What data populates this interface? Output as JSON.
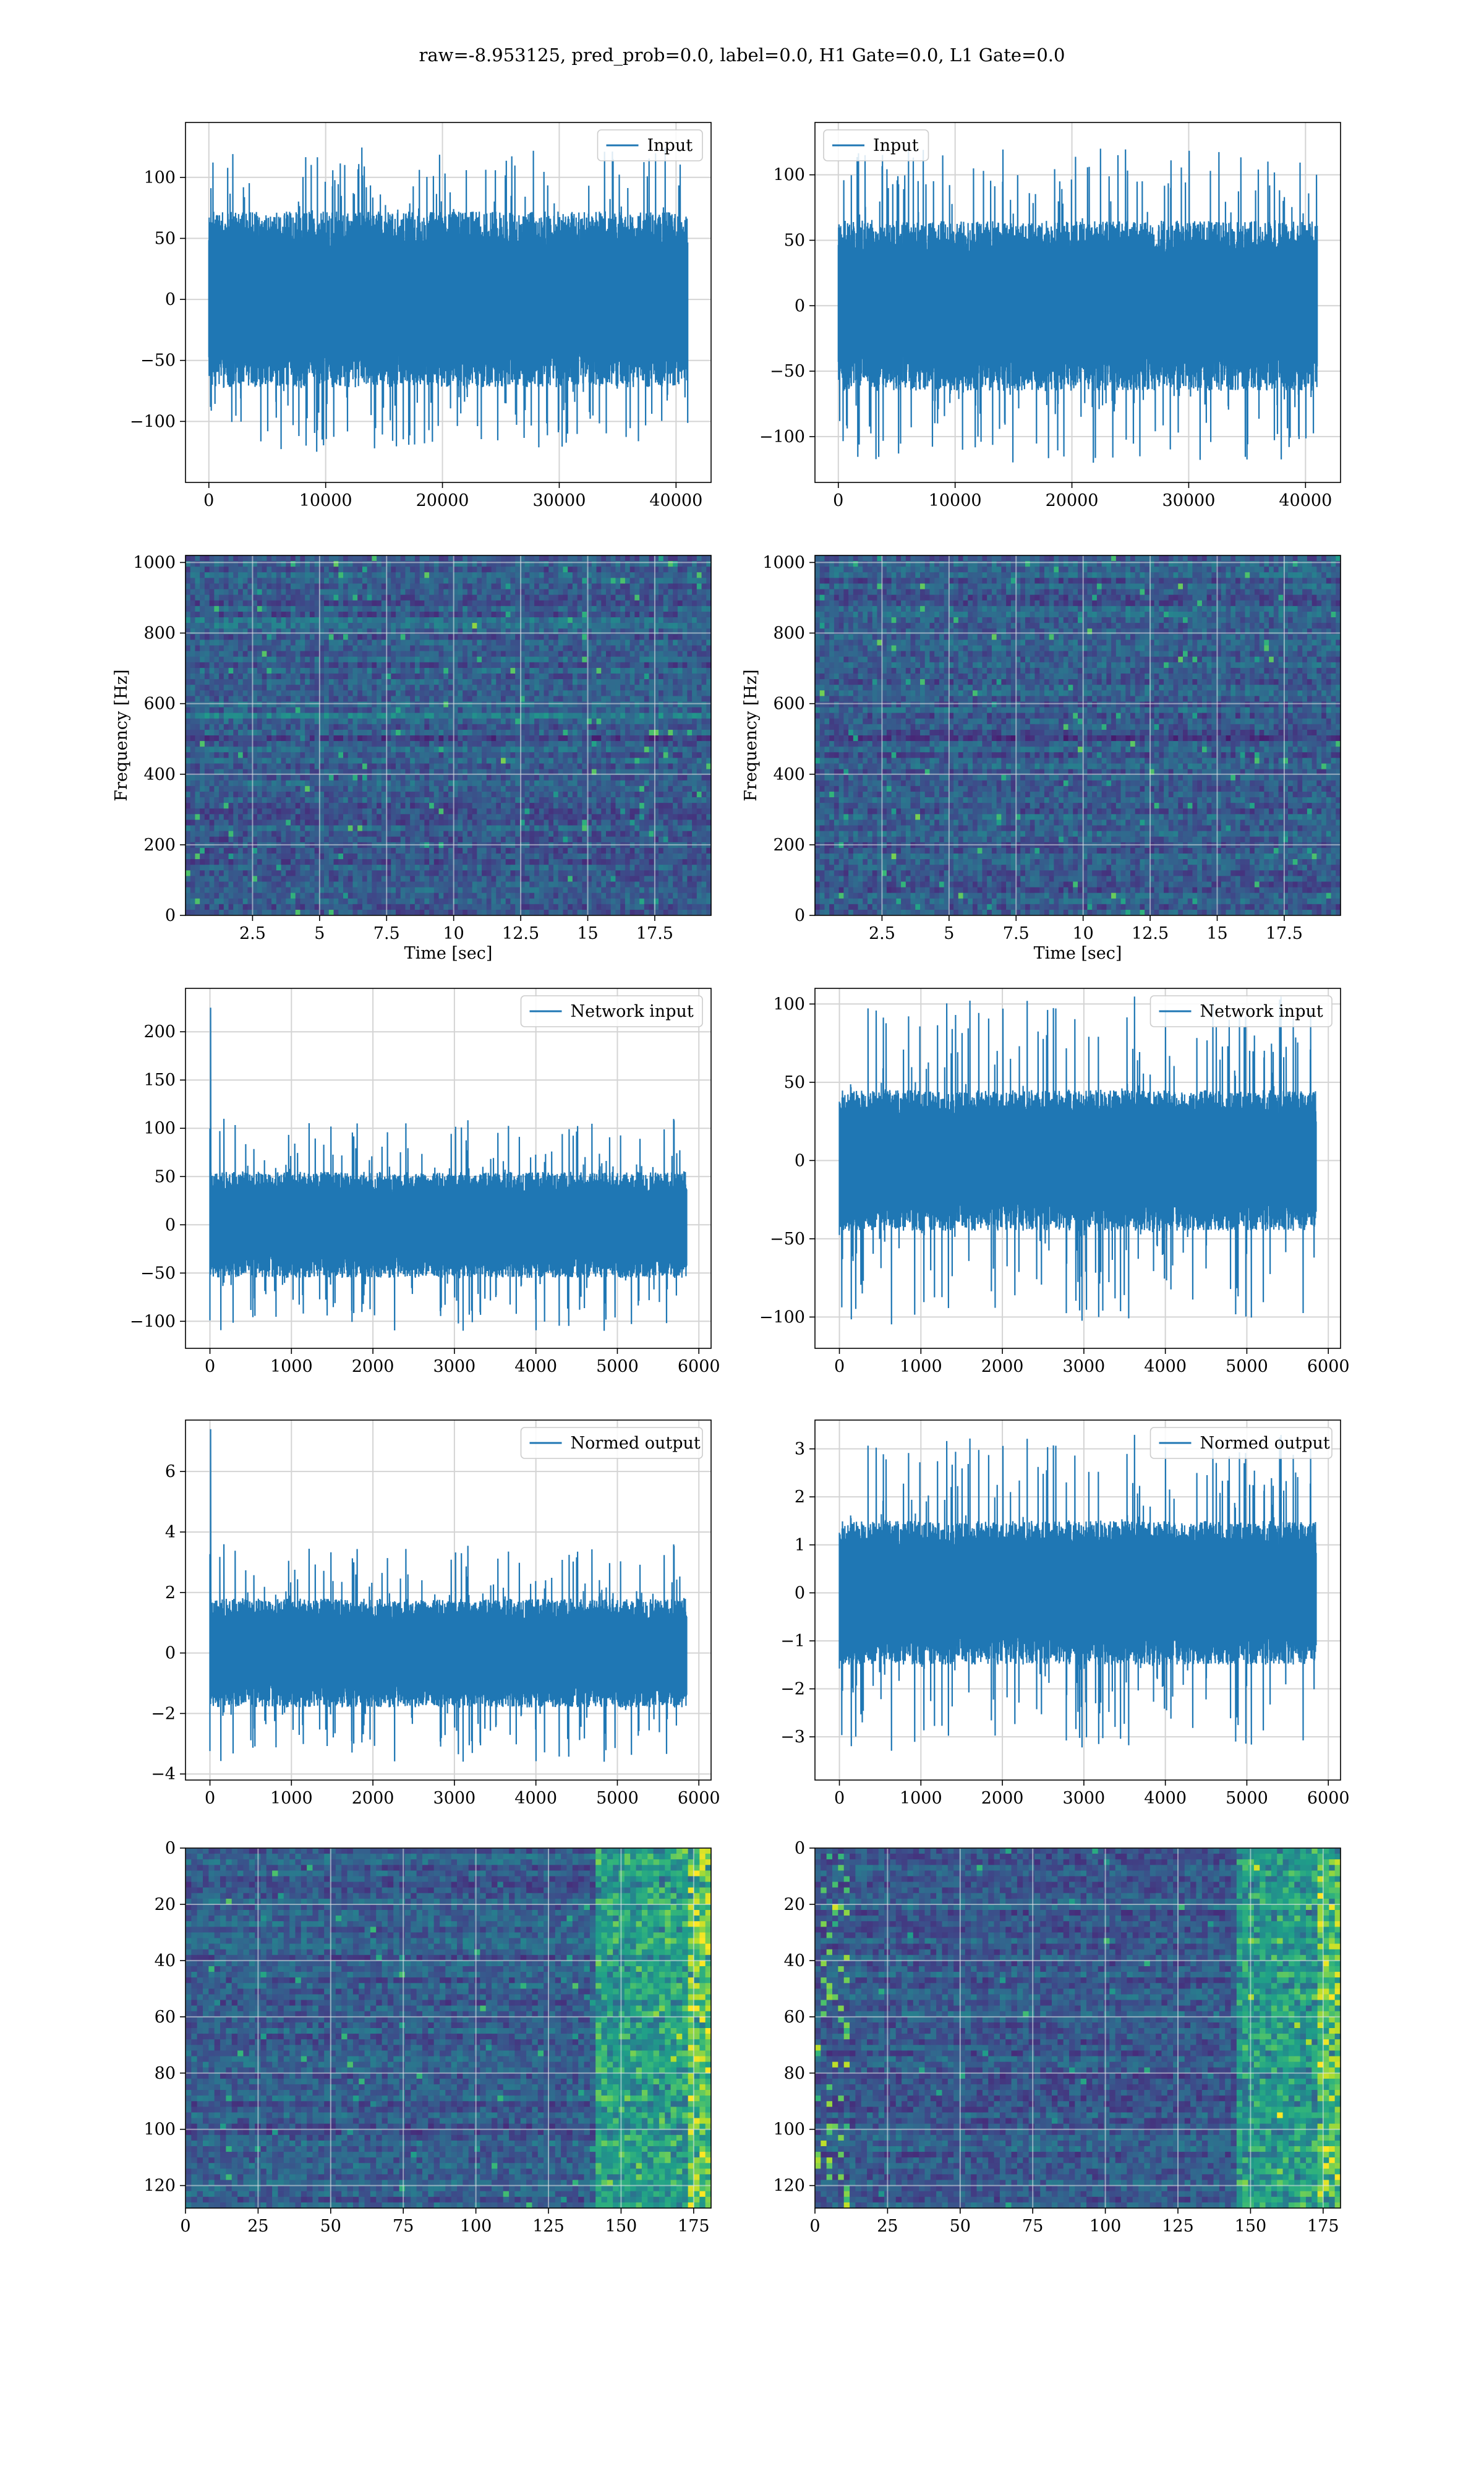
{
  "suptitle": "raw=-8.953125, pred_prob=0.0, label=0.0, H1 Gate=0.0, L1 Gate=0.0",
  "colors": {
    "line": "#1f77b4",
    "grid": "#d4d4d4",
    "axes": "#000000",
    "viridis": [
      "#440154",
      "#482878",
      "#3e4989",
      "#31688e",
      "#26828e",
      "#1f9e89",
      "#35b779",
      "#6ece58",
      "#b5de2b",
      "#fde725"
    ]
  },
  "chart_data": [
    {
      "id": "input-h1",
      "type": "line",
      "row": 0,
      "col": 0,
      "legend": "Input",
      "legend_position": "upper right",
      "xlim": [
        -2000,
        43000
      ],
      "ylim": [
        -150,
        145
      ],
      "xticks": [
        0,
        10000,
        20000,
        30000,
        40000
      ],
      "yticks": [
        -100,
        -50,
        0,
        50,
        100
      ],
      "grid": true,
      "series": [
        {
          "n": 41000,
          "x_start": 0,
          "x_end": 41000,
          "core": 72,
          "spike": 125,
          "seed": 11
        }
      ]
    },
    {
      "id": "input-l1",
      "type": "line",
      "row": 0,
      "col": 1,
      "legend": "Input",
      "legend_position": "upper left",
      "xlim": [
        -2000,
        43000
      ],
      "ylim": [
        -135,
        140
      ],
      "xticks": [
        0,
        10000,
        20000,
        30000,
        40000
      ],
      "yticks": [
        -100,
        -50,
        0,
        50,
        100
      ],
      "grid": true,
      "series": [
        {
          "n": 41000,
          "x_start": 0,
          "x_end": 41000,
          "core": 65,
          "spike": 120,
          "seed": 23
        }
      ]
    },
    {
      "id": "spectrogram-h1",
      "type": "heatmap",
      "row": 1,
      "col": 0,
      "xlabel": "Time [sec]",
      "ylabel": "Frequency [Hz]",
      "xlim": [
        0,
        19.6
      ],
      "ylim": [
        0,
        1020
      ],
      "xticks": [
        2.5,
        5.0,
        7.5,
        10.0,
        12.5,
        15.0,
        17.5
      ],
      "yticks": [
        0,
        200,
        400,
        600,
        800,
        1000
      ],
      "grid": true,
      "colormap": "viridis",
      "bands_hz": [
        830,
        560,
        505
      ],
      "seed": 5
    },
    {
      "id": "spectrogram-l1",
      "type": "heatmap",
      "row": 1,
      "col": 1,
      "xlabel": "Time [sec]",
      "ylabel": "Frequency [Hz]",
      "xlim": [
        0,
        19.6
      ],
      "ylim": [
        0,
        1020
      ],
      "xticks": [
        2.5,
        5.0,
        7.5,
        10.0,
        12.5,
        15.0,
        17.5
      ],
      "yticks": [
        0,
        200,
        400,
        600,
        800,
        1000
      ],
      "grid": true,
      "colormap": "viridis",
      "bands_hz": [
        500
      ],
      "seed": 7
    },
    {
      "id": "network-input-h1",
      "type": "line",
      "row": 2,
      "col": 0,
      "legend": "Network input",
      "legend_position": "upper right",
      "xlim": [
        -300,
        6150
      ],
      "ylim": [
        -128,
        245
      ],
      "xticks": [
        0,
        1000,
        2000,
        3000,
        4000,
        5000,
        6000
      ],
      "yticks": [
        -100,
        -50,
        0,
        50,
        100,
        150,
        200
      ],
      "grid": true,
      "series": [
        {
          "n": 5850,
          "x_start": 0,
          "x_end": 5850,
          "core": 55,
          "spike": 110,
          "seed": 31,
          "first_spike": 225
        }
      ]
    },
    {
      "id": "network-input-l1",
      "type": "line",
      "row": 2,
      "col": 1,
      "legend": "Network input",
      "legend_position": "upper right",
      "xlim": [
        -300,
        6150
      ],
      "ylim": [
        -120,
        110
      ],
      "xticks": [
        0,
        1000,
        2000,
        3000,
        4000,
        5000,
        6000
      ],
      "yticks": [
        -100,
        -50,
        0,
        50,
        100
      ],
      "grid": true,
      "series": [
        {
          "n": 5850,
          "x_start": 0,
          "x_end": 5850,
          "core": 45,
          "spike": 105,
          "seed": 37
        }
      ]
    },
    {
      "id": "normed-output-h1",
      "type": "line",
      "row": 3,
      "col": 0,
      "legend": "Normed output",
      "legend_position": "upper right",
      "xlim": [
        -300,
        6150
      ],
      "ylim": [
        -4.2,
        7.7
      ],
      "xticks": [
        0,
        1000,
        2000,
        3000,
        4000,
        5000,
        6000
      ],
      "yticks": [
        -4,
        -2,
        0,
        2,
        4,
        6
      ],
      "grid": true,
      "series": [
        {
          "n": 5850,
          "x_start": 0,
          "x_end": 5850,
          "core": 1.8,
          "spike": 3.6,
          "seed": 31,
          "first_spike": 7.4
        }
      ]
    },
    {
      "id": "normed-output-l1",
      "type": "line",
      "row": 3,
      "col": 1,
      "legend": "Normed output",
      "legend_position": "upper right",
      "xlim": [
        -300,
        6150
      ],
      "ylim": [
        -3.9,
        3.6
      ],
      "xticks": [
        0,
        1000,
        2000,
        3000,
        4000,
        5000,
        6000
      ],
      "yticks": [
        -3,
        -2,
        -1,
        0,
        1,
        2,
        3
      ],
      "grid": true,
      "series": [
        {
          "n": 5850,
          "x_start": 0,
          "x_end": 5850,
          "core": 1.5,
          "spike": 3.3,
          "seed": 37
        }
      ]
    },
    {
      "id": "features-h1",
      "type": "heatmap",
      "row": 4,
      "col": 0,
      "xlim": [
        0,
        181
      ],
      "ylim": [
        128,
        0
      ],
      "xticks": [
        0,
        25,
        50,
        75,
        100,
        125,
        150,
        175
      ],
      "yticks": [
        0,
        20,
        40,
        60,
        80,
        100,
        120
      ],
      "grid": true,
      "colormap": "viridis",
      "hot_columns_from": 140,
      "left_hot": false,
      "seed": 41
    },
    {
      "id": "features-l1",
      "type": "heatmap",
      "row": 4,
      "col": 1,
      "xlim": [
        0,
        181
      ],
      "ylim": [
        128,
        0
      ],
      "xticks": [
        0,
        25,
        50,
        75,
        100,
        125,
        150,
        175
      ],
      "yticks": [
        0,
        20,
        40,
        60,
        80,
        100,
        120
      ],
      "grid": true,
      "colormap": "viridis",
      "hot_columns_from": 145,
      "left_hot": true,
      "seed": 53
    }
  ]
}
